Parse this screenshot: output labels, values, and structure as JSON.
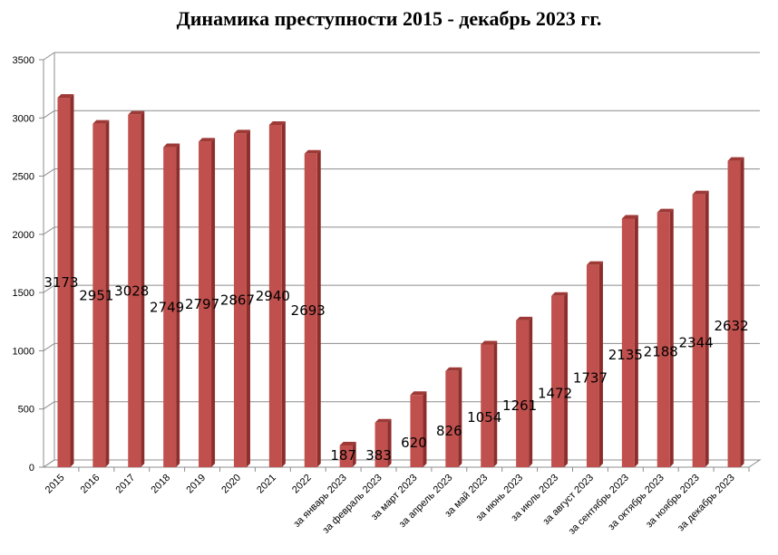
{
  "chart_data": {
    "type": "bar",
    "title": "Динамика преступности 2015 - декабрь 2023 гг.",
    "categories": [
      "2015",
      "2016",
      "2017",
      "2018",
      "2019",
      "2020",
      "2021",
      "2022",
      "за январь 2023",
      "за февраль 2023",
      "за март 2023",
      "за апрель 2023",
      "за май 2023",
      "за июнь 2023",
      "за июль 2023",
      "за август 2023",
      "за сентябрь 2023",
      "за октябрь 2023",
      "за ноябрь 2023",
      "за декабрь 2023"
    ],
    "values": [
      3173,
      2951,
      3028,
      2749,
      2797,
      2867,
      2940,
      2693,
      187,
      383,
      620,
      826,
      1054,
      1261,
      1472,
      1737,
      2135,
      2188,
      2344,
      2632
    ],
    "yticks": [
      "0",
      "500",
      "1000",
      "1500",
      "2000",
      "2500",
      "3000",
      "3500"
    ],
    "ylim": [
      0,
      3500
    ],
    "grid": true,
    "legend": "none",
    "bar_color": "#C0504D",
    "bar_side_color": "#8C2E2C",
    "bar_top_color": "#9E3936"
  }
}
